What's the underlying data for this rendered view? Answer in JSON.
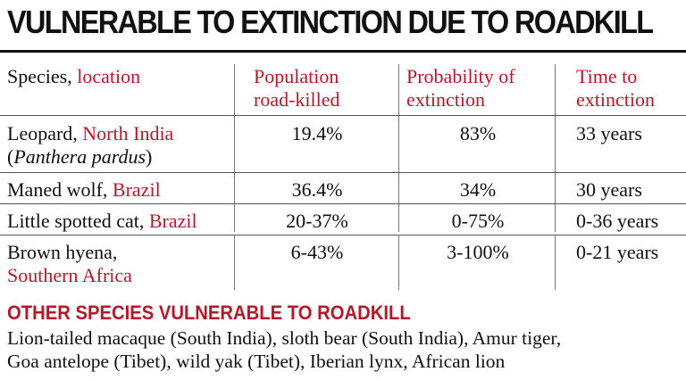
{
  "title": "VULNERABLE TO EXTINCTION DUE TO ROADKILL",
  "table": {
    "headers": {
      "species": "Species,",
      "location": "location",
      "population_l1": "Population",
      "population_l2": "road-killed",
      "probability_l1": "Probability of",
      "probability_l2": "extinction",
      "time_l1": "Time to",
      "time_l2": "extinction"
    },
    "rows": [
      {
        "species": "Leopard,",
        "location": "North India",
        "scientific": "Panthera pardus",
        "population": "19.4%",
        "probability": "83%",
        "time": "33 years"
      },
      {
        "species": "Maned wolf,",
        "location": "Brazil",
        "population": "36.4%",
        "probability": "34%",
        "time": "30 years"
      },
      {
        "species": "Little spotted cat,",
        "location": "Brazil",
        "population": "20-37%",
        "probability": "0-75%",
        "time": "0-36 years"
      },
      {
        "species": "Brown hyena,",
        "location": "Southern Africa",
        "population": "6-43%",
        "probability": "3-100%",
        "time": "0-21 years"
      }
    ]
  },
  "other": {
    "heading": "OTHER SPECIES VULNERABLE TO ROADKILL",
    "line1": "Lion-tailed macaque (South India), sloth bear (South India), Amur tiger,",
    "line2": "Goa antelope (Tibet), wild yak (Tibet), Iberian lynx, African lion"
  }
}
